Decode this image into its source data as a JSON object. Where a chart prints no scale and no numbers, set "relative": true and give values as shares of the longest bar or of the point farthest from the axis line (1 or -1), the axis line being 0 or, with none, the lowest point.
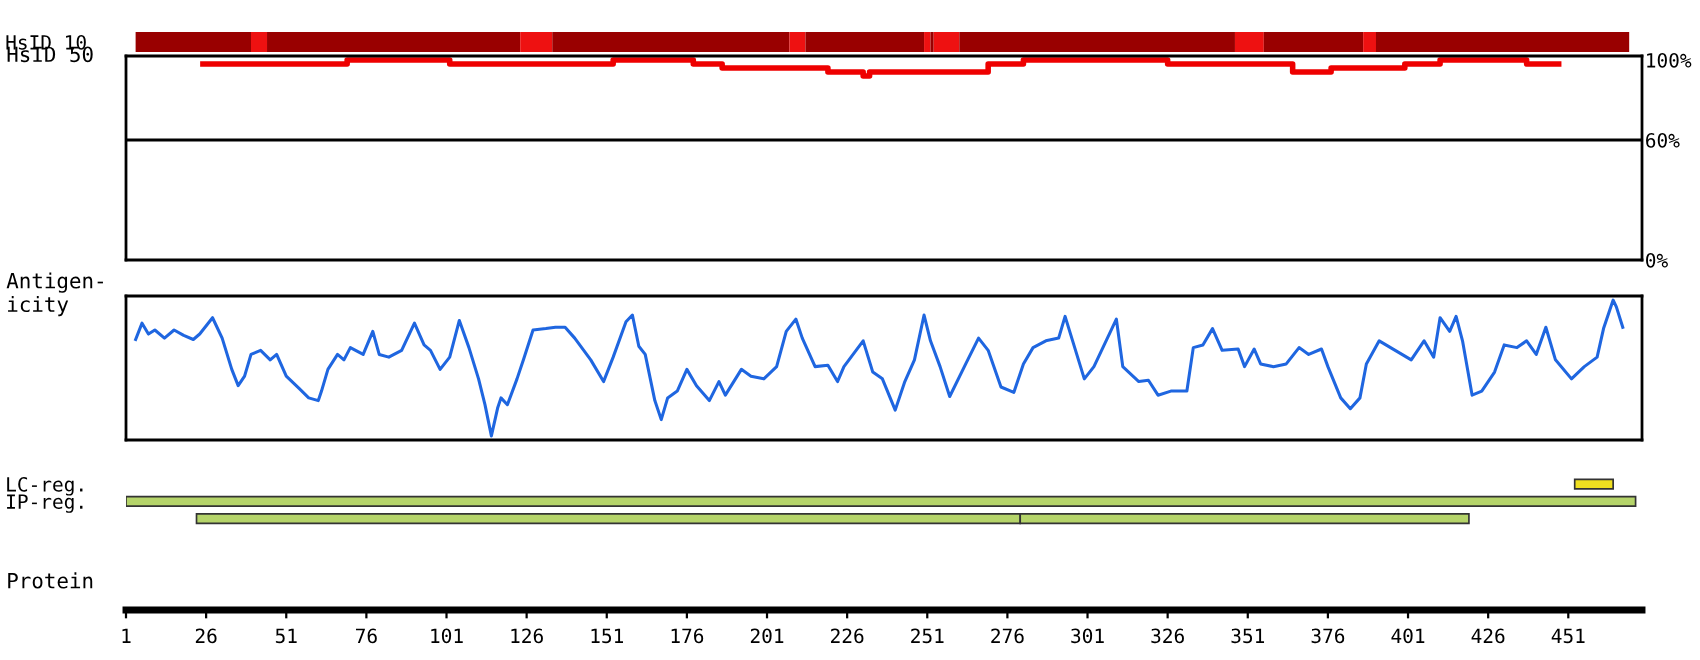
{
  "chart_data": [
    {
      "type": "bar",
      "orientation": "horizontal",
      "categories": [
        "HsID 10"
      ],
      "xlim": [
        1,
        474
      ],
      "tick_labels": "y",
      "series": [
        {
          "color": "#990000",
          "base": [
            4
          ],
          "values": [
            36
          ]
        },
        {
          "color": "#ee1111",
          "base": [
            40
          ],
          "values": [
            5
          ]
        },
        {
          "color": "#990000",
          "base": [
            45
          ],
          "values": [
            79
          ]
        },
        {
          "color": "#ee1111",
          "base": [
            124
          ],
          "values": [
            10
          ]
        },
        {
          "color": "#990000",
          "base": [
            134
          ],
          "values": [
            74
          ]
        },
        {
          "color": "#ee1111",
          "base": [
            208
          ],
          "values": [
            5
          ]
        },
        {
          "color": "#990000",
          "base": [
            213
          ],
          "values": [
            37
          ]
        },
        {
          "color": "#ee1111",
          "base": [
            250
          ],
          "values": [
            2
          ]
        },
        {
          "color": "#990000",
          "base": [
            252
          ],
          "values": [
            1
          ]
        },
        {
          "color": "#ee1111",
          "base": [
            253
          ],
          "values": [
            8
          ]
        },
        {
          "color": "#990000",
          "base": [
            261
          ],
          "values": [
            86
          ]
        },
        {
          "color": "#ee1111",
          "base": [
            347
          ],
          "values": [
            9
          ]
        },
        {
          "color": "#990000",
          "base": [
            356
          ],
          "values": [
            31
          ]
        },
        {
          "color": "#ee1111",
          "base": [
            387
          ],
          "values": [
            4
          ]
        },
        {
          "color": "#990000",
          "base": [
            391
          ],
          "values": [
            79
          ]
        }
      ]
    },
    {
      "type": "step",
      "ylabel": "HsID 50",
      "xlim": [
        1,
        474
      ],
      "ylim": [
        0,
        102
      ],
      "tick_labels": "y",
      "yticks": [
        {
          "value": 0,
          "label": "0%"
        },
        {
          "value": 60,
          "label": "60%"
        },
        {
          "value": 100,
          "label": "100%"
        }
      ],
      "ref_lines": [
        {
          "axis": "y",
          "value": 60,
          "color": "#000000"
        }
      ],
      "series": [
        {
          "color": "#ee0000",
          "x": [
            25,
            70,
            102,
            153,
            178,
            187,
            220,
            231,
            233,
            270,
            281,
            326,
            365,
            377,
            400,
            411,
            438,
            448
          ],
          "values": [
            98,
            100,
            98,
            100,
            98,
            96,
            94,
            92,
            94,
            98,
            100,
            98,
            94,
            96,
            98,
            100,
            98,
            98
          ]
        }
      ]
    },
    {
      "type": "line",
      "ylabel": "Antigen-\nicity",
      "xlim": [
        1,
        474
      ],
      "relative": true,
      "tick_labels": false,
      "series": [
        {
          "color": "#1f66e0",
          "x": [
            4,
            6,
            8,
            10,
            13,
            16,
            19,
            22,
            24,
            28,
            31,
            34,
            36,
            38,
            40,
            43,
            46,
            48,
            51,
            55,
            58,
            61,
            62,
            64,
            67,
            69,
            71,
            75,
            78,
            80,
            83,
            87,
            91,
            94,
            96,
            99,
            102,
            105,
            108,
            111,
            113,
            115,
            117,
            118,
            120,
            123,
            125,
            128,
            132,
            135,
            138,
            141,
            146,
            150,
            153,
            157,
            159,
            161,
            163,
            166,
            168,
            170,
            173,
            176,
            179,
            183,
            186,
            188,
            193,
            196,
            200,
            204,
            207,
            210,
            212,
            216,
            220,
            223,
            225,
            231,
            234,
            237,
            241,
            244,
            247,
            250,
            252,
            255,
            258,
            263,
            267,
            270,
            274,
            278,
            281,
            284,
            288,
            292,
            294,
            297,
            300,
            303,
            310,
            312,
            317,
            320,
            323,
            327,
            332,
            334,
            337,
            340,
            343,
            348,
            350,
            353,
            355,
            359,
            363,
            367,
            370,
            374,
            376,
            380,
            383,
            386,
            388,
            392,
            397,
            402,
            406,
            409,
            411,
            414,
            416,
            418,
            421,
            424,
            428,
            431,
            435,
            438,
            441,
            444,
            447,
            452,
            456,
            460,
            462,
            465,
            466,
            468
          ],
          "values": [
            0.71,
            0.83,
            0.75,
            0.78,
            0.72,
            0.78,
            0.74,
            0.71,
            0.75,
            0.87,
            0.72,
            0.49,
            0.37,
            0.44,
            0.6,
            0.63,
            0.56,
            0.6,
            0.44,
            0.35,
            0.28,
            0.26,
            0.33,
            0.49,
            0.6,
            0.56,
            0.65,
            0.6,
            0.77,
            0.6,
            0.58,
            0.63,
            0.83,
            0.67,
            0.63,
            0.49,
            0.58,
            0.85,
            0.65,
            0.42,
            0.23,
            0,
            0.21,
            0.28,
            0.23,
            0.42,
            0.56,
            0.78,
            0.79,
            0.8,
            0.8,
            0.72,
            0.56,
            0.4,
            0.58,
            0.84,
            0.89,
            0.66,
            0.6,
            0.26,
            0.12,
            0.28,
            0.33,
            0.49,
            0.37,
            0.26,
            0.4,
            0.3,
            0.49,
            0.44,
            0.42,
            0.51,
            0.77,
            0.86,
            0.72,
            0.51,
            0.52,
            0.4,
            0.51,
            0.7,
            0.47,
            0.42,
            0.19,
            0.4,
            0.56,
            0.89,
            0.7,
            0.51,
            0.29,
            0.53,
            0.72,
            0.63,
            0.36,
            0.32,
            0.53,
            0.65,
            0.7,
            0.72,
            0.88,
            0.65,
            0.42,
            0.51,
            0.86,
            0.51,
            0.4,
            0.41,
            0.3,
            0.33,
            0.33,
            0.65,
            0.67,
            0.79,
            0.63,
            0.64,
            0.51,
            0.64,
            0.53,
            0.51,
            0.53,
            0.65,
            0.6,
            0.64,
            0.51,
            0.28,
            0.2,
            0.28,
            0.53,
            0.7,
            0.63,
            0.56,
            0.7,
            0.58,
            0.87,
            0.77,
            0.88,
            0.7,
            0.3,
            0.33,
            0.47,
            0.67,
            0.65,
            0.7,
            0.6,
            0.8,
            0.56,
            0.42,
            0.51,
            0.58,
            0.79,
            1,
            0.95,
            0.8
          ]
        }
      ]
    },
    {
      "type": "bar",
      "orientation": "horizontal",
      "categories": [
        "LC-reg.",
        "IP-reg.",
        null
      ],
      "xlabel": "Protein",
      "xlim": [
        1,
        474
      ],
      "xticks": [
        1,
        26,
        51,
        76,
        101,
        126,
        151,
        176,
        201,
        226,
        251,
        276,
        301,
        326,
        351,
        376,
        401,
        426,
        451
      ],
      "series": [
        {
          "color": "#f0e020",
          "base": [
            453,
            null,
            null
          ],
          "values": [
            12,
            null,
            null
          ]
        },
        {
          "color": "#b5d46a",
          "base": [
            null,
            1,
            23
          ],
          "values": [
            null,
            471,
            257
          ]
        },
        {
          "color": "#b5d46a",
          "base": [
            null,
            null,
            280
          ],
          "values": [
            null,
            null,
            140
          ]
        }
      ]
    }
  ]
}
